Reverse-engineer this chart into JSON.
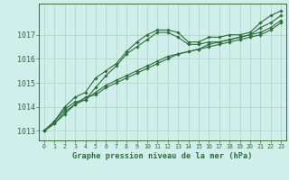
{
  "background_color": "#d0eeea",
  "grid_color": "#b0d8cc",
  "line_color": "#2d6e3a",
  "xlabel": "Graphe pression niveau de la mer (hPa)",
  "xlim": [
    -0.5,
    23.5
  ],
  "ylim": [
    1012.6,
    1018.3
  ],
  "yticks": [
    1013,
    1014,
    1015,
    1016,
    1017
  ],
  "xticks": [
    0,
    1,
    2,
    3,
    4,
    5,
    6,
    7,
    8,
    9,
    10,
    11,
    12,
    13,
    14,
    15,
    16,
    17,
    18,
    19,
    20,
    21,
    22,
    23
  ],
  "series": [
    [
      1013.0,
      1013.3,
      1013.7,
      1014.1,
      1014.3,
      1014.8,
      1015.3,
      1015.7,
      1016.2,
      1016.5,
      1016.8,
      1017.1,
      1017.1,
      1016.9,
      1016.6,
      1016.6,
      1016.7,
      1016.7,
      1016.8,
      1016.9,
      1017.0,
      1017.3,
      1017.5,
      1017.8
    ],
    [
      1013.0,
      1013.3,
      1013.8,
      1014.1,
      1014.4,
      1014.5,
      1014.8,
      1015.0,
      1015.2,
      1015.4,
      1015.6,
      1015.8,
      1016.0,
      1016.2,
      1016.3,
      1016.4,
      1016.5,
      1016.6,
      1016.7,
      1016.8,
      1016.9,
      1017.0,
      1017.2,
      1017.5
    ],
    [
      1013.0,
      1013.4,
      1013.9,
      1014.2,
      1014.3,
      1014.6,
      1014.9,
      1015.1,
      1015.3,
      1015.5,
      1015.7,
      1015.9,
      1016.1,
      1016.2,
      1016.3,
      1016.4,
      1016.6,
      1016.7,
      1016.8,
      1016.9,
      1017.0,
      1017.1,
      1017.3,
      1017.6
    ],
    [
      1013.0,
      1013.4,
      1014.0,
      1014.4,
      1014.6,
      1015.2,
      1015.5,
      1015.8,
      1016.3,
      1016.7,
      1017.0,
      1017.2,
      1017.2,
      1017.1,
      1016.7,
      1016.7,
      1016.9,
      1016.9,
      1017.0,
      1017.0,
      1017.1,
      1017.5,
      1017.8,
      1018.0
    ]
  ],
  "ytick_fontsize": 6.0,
  "xtick_fontsize": 4.8,
  "xlabel_fontsize": 6.2
}
